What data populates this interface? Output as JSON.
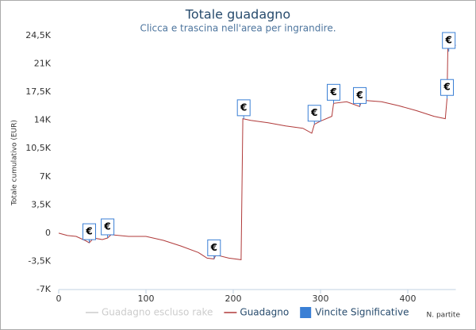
{
  "chart_data": {
    "type": "line",
    "title": "Totale guadagno",
    "subtitle": "Clicca e trascina nell'area per ingrandire.",
    "y_label": "Totale cumulativo (EUR)",
    "x_label": "N. partite",
    "x": [
      0,
      10,
      20,
      30,
      35,
      40,
      50,
      56,
      60,
      80,
      100,
      120,
      140,
      160,
      170,
      178,
      180,
      195,
      209,
      211,
      220,
      240,
      260,
      280,
      290,
      293,
      300,
      313,
      315,
      330,
      345,
      347,
      370,
      390,
      410,
      430,
      443,
      445,
      446,
      455
    ],
    "series": [
      {
        "name": "Guadagno escluso rake",
        "color": "#cccccc",
        "visible": false,
        "values": [
          null,
          null,
          null,
          null,
          null,
          null,
          null,
          null,
          null,
          null,
          null,
          null,
          null,
          null,
          null,
          null,
          null,
          null,
          null,
          null,
          null,
          null,
          null,
          null,
          null,
          null,
          null,
          null,
          null,
          null,
          null,
          null,
          null,
          null,
          null,
          null,
          null,
          null,
          null,
          null
        ]
      },
      {
        "name": "Guadagno",
        "color": "#b03a3a",
        "visible": true,
        "values": [
          0,
          -300,
          -400,
          -900,
          -1200,
          -600,
          -800,
          -600,
          -200,
          -400,
          -400,
          -900,
          -1600,
          -2400,
          -3100,
          -3200,
          -2700,
          -3100,
          -3300,
          14200,
          14000,
          13700,
          13300,
          13000,
          12400,
          13500,
          13900,
          14500,
          16100,
          16300,
          15700,
          16500,
          16300,
          15800,
          15200,
          14500,
          14200,
          16700,
          23500,
          23300
        ]
      }
    ],
    "flags": {
      "name": "Vincite Significative",
      "color": "#3a7fd5",
      "label": "€",
      "x": [
        35,
        56,
        178,
        212,
        293,
        315,
        345,
        445,
        447
      ]
    },
    "xlim": [
      0,
      455
    ],
    "xticks": [
      0,
      100,
      200,
      300,
      400
    ],
    "ylim": [
      -7000,
      24500
    ],
    "yticks": [
      {
        "value": 24500,
        "label": "24,5K"
      },
      {
        "value": 21000,
        "label": "21K"
      },
      {
        "value": 17500,
        "label": "17,5K"
      },
      {
        "value": 14000,
        "label": "14K"
      },
      {
        "value": 10500,
        "label": "10,5K"
      },
      {
        "value": 7000,
        "label": "7K"
      },
      {
        "value": 3500,
        "label": "3,5K"
      },
      0,
      {
        "value": -3500,
        "label": "-3,5K"
      },
      {
        "value": -7000,
        "label": "-7K"
      }
    ],
    "grid": false
  }
}
